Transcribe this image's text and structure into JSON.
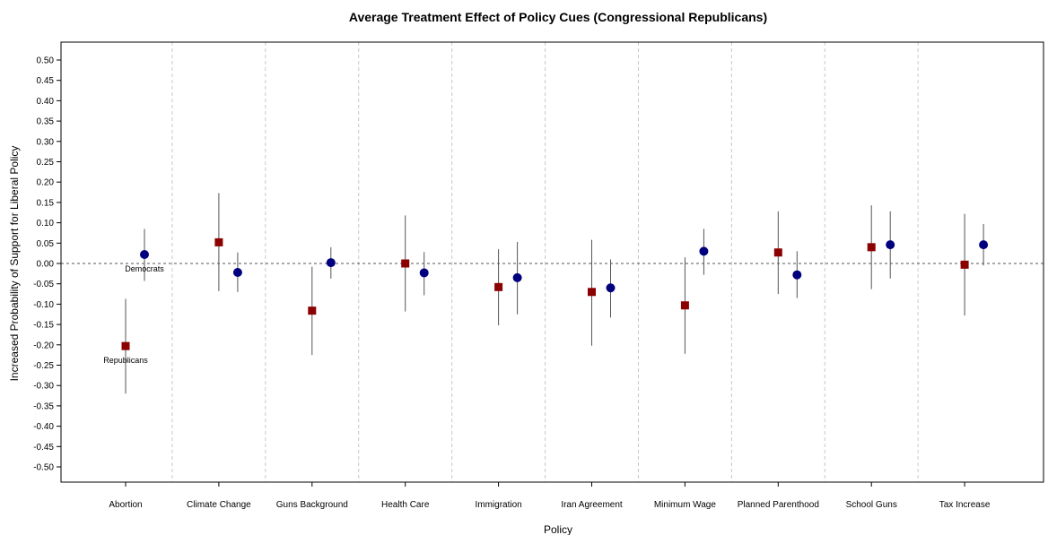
{
  "chart_data": {
    "type": "scatter",
    "title": "Average Treatment Effect of Policy Cues (Congressional Republicans)",
    "xlabel": "Policy",
    "ylabel": "Increased Probability of Support for Liberal Policy",
    "ylim": [
      -0.5,
      0.5
    ],
    "yticks": [
      "0.50",
      "0.45",
      "0.40",
      "0.35",
      "0.30",
      "0.25",
      "0.20",
      "0.15",
      "0.10",
      "0.05",
      "0.00",
      "-0.05",
      "-0.10",
      "-0.15",
      "-0.20",
      "-0.25",
      "-0.30",
      "-0.35",
      "-0.40",
      "-0.45",
      "-0.50"
    ],
    "categories": [
      "Abortion",
      "Climate Change",
      "Guns Background",
      "Health Care",
      "Immigration",
      "Iran Agreement",
      "Minimum Wage",
      "Planned Parenthood",
      "School Guns",
      "Tax Increase"
    ],
    "reference_line": 0,
    "grid": "vertical dashed separators between policies",
    "series": [
      {
        "name": "Republicans",
        "marker": "square",
        "color": "#8b0000",
        "values": [
          -0.203,
          0.052,
          -0.116,
          0.0,
          -0.058,
          -0.07,
          -0.103,
          0.027,
          0.04,
          -0.003
        ],
        "lower": [
          -0.32,
          -0.068,
          -0.225,
          -0.118,
          -0.152,
          -0.202,
          -0.222,
          -0.075,
          -0.063,
          -0.128
        ],
        "upper": [
          -0.087,
          0.173,
          -0.008,
          0.118,
          0.035,
          0.058,
          0.015,
          0.128,
          0.143,
          0.122
        ]
      },
      {
        "name": "Democrats",
        "marker": "circle",
        "color": "#00007f",
        "values": [
          0.022,
          -0.022,
          0.002,
          -0.023,
          -0.035,
          -0.06,
          0.03,
          -0.028,
          0.046,
          0.046
        ],
        "lower": [
          -0.043,
          -0.07,
          -0.037,
          -0.078,
          -0.125,
          -0.133,
          -0.028,
          -0.085,
          -0.037,
          -0.005
        ],
        "upper": [
          0.085,
          0.027,
          0.04,
          0.028,
          0.053,
          0.01,
          0.085,
          0.03,
          0.128,
          0.097
        ]
      }
    ],
    "annotations": [
      {
        "text": "Democrats",
        "category": "Abortion",
        "series": "Democrats"
      },
      {
        "text": "Republicans",
        "category": "Abortion",
        "series": "Republicans"
      }
    ]
  }
}
